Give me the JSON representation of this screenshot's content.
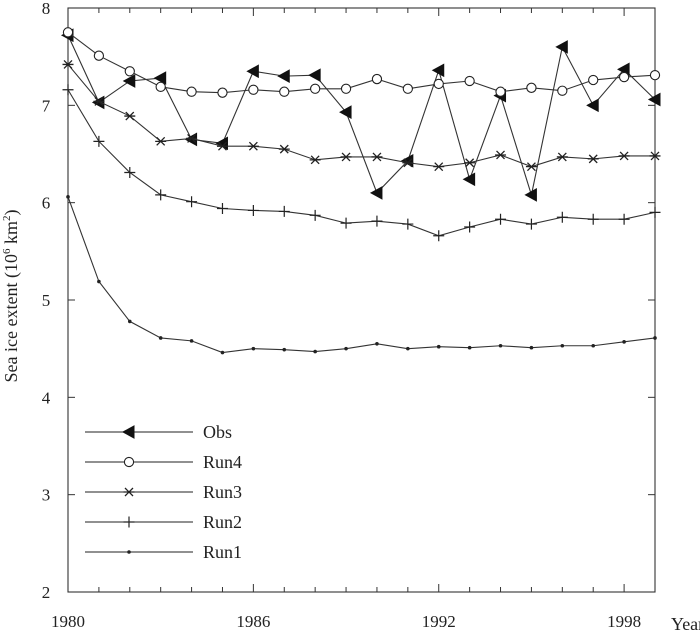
{
  "chart_data": {
    "type": "line",
    "title": "",
    "xlabel": "Year",
    "ylabel": "Sea ice extent (10⁶ km²)",
    "ylabel_parts": {
      "pre": "Sea ice extent (10",
      "sup1": "6",
      "mid": " km",
      "sup2": "2",
      "post": ")"
    },
    "xlim": [
      1980,
      1999
    ],
    "ylim": [
      2,
      8
    ],
    "x_ticks": [
      1980,
      1986,
      1992,
      1998
    ],
    "y_ticks": [
      2,
      3,
      4,
      5,
      6,
      7,
      8
    ],
    "x": [
      1980,
      1981,
      1982,
      1983,
      1984,
      1985,
      1986,
      1987,
      1988,
      1989,
      1990,
      1991,
      1992,
      1993,
      1994,
      1995,
      1996,
      1997,
      1998,
      1999
    ],
    "legend_position": "bottom-left",
    "series": [
      {
        "name": "Obs",
        "marker": "triangle-left",
        "values": [
          7.72,
          7.03,
          7.25,
          7.28,
          6.65,
          6.61,
          7.35,
          7.3,
          7.31,
          6.93,
          6.1,
          6.43,
          7.36,
          6.24,
          7.1,
          6.08,
          7.6,
          7.0,
          7.37,
          7.06
        ]
      },
      {
        "name": "Run4",
        "marker": "circle",
        "values": [
          7.75,
          7.51,
          7.35,
          7.19,
          7.14,
          7.13,
          7.16,
          7.14,
          7.17,
          7.17,
          7.27,
          7.17,
          7.22,
          7.25,
          7.14,
          7.18,
          7.15,
          7.26,
          7.29,
          7.31
        ]
      },
      {
        "name": "Run3",
        "marker": "asterisk",
        "values": [
          7.42,
          7.04,
          6.89,
          6.63,
          6.66,
          6.58,
          6.58,
          6.55,
          6.44,
          6.47,
          6.47,
          6.41,
          6.37,
          6.41,
          6.49,
          6.37,
          6.47,
          6.45,
          6.48,
          6.48
        ]
      },
      {
        "name": "Run2",
        "marker": "plus",
        "values": [
          7.16,
          6.63,
          6.31,
          6.08,
          6.01,
          5.94,
          5.92,
          5.91,
          5.87,
          5.79,
          5.81,
          5.78,
          5.66,
          5.75,
          5.83,
          5.78,
          5.85,
          5.83,
          5.83,
          5.9
        ]
      },
      {
        "name": "Run1",
        "marker": "dot",
        "values": [
          6.06,
          5.19,
          4.78,
          4.61,
          4.58,
          4.46,
          4.5,
          4.49,
          4.47,
          4.5,
          4.55,
          4.5,
          4.52,
          4.51,
          4.53,
          4.51,
          4.53,
          4.53,
          4.57,
          4.61
        ]
      }
    ]
  }
}
